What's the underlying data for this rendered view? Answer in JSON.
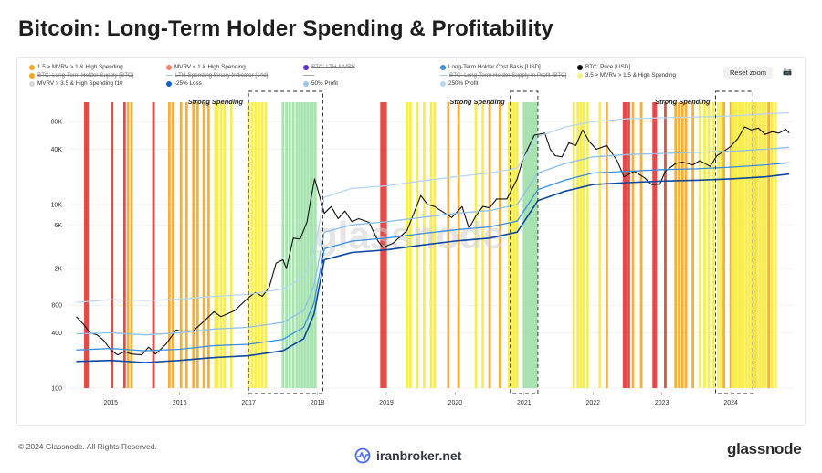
{
  "title": "Bitcoin: Long-Term Holder Spending & Profitability",
  "legend": [
    {
      "label": "1.5 > MVRV > 1 & High Spending",
      "color": "#f5a623",
      "style": "dot",
      "struck": false
    },
    {
      "label": "BTC: Long-Term Holder Supply [BTC]",
      "color": "#f5a623",
      "style": "dot",
      "struck": true
    },
    {
      "label": "MVRV > 3.5 & High Spending f10",
      "color": "#d9d9d9",
      "style": "dot",
      "struck": false
    },
    {
      "label": "MVRV < 1 & High Spending",
      "color": "#ff7f6e",
      "style": "dot",
      "struck": false
    },
    {
      "label": "LTH-Spending Binary Indicator [14d]",
      "color": "#9bc7e8",
      "style": "line",
      "struck": true
    },
    {
      "label": "-25% Loss",
      "color": "#1565c0",
      "style": "dot",
      "struck": false
    },
    {
      "label": "BTC: LTH-MVRV",
      "color": "#5b2bd6",
      "style": "dot",
      "struck": true
    },
    {
      "label": "——",
      "color": "#9aa0a6",
      "style": "none",
      "struck": false
    },
    {
      "label": "50% Profit",
      "color": "#9bc7e8",
      "style": "dot",
      "struck": false
    },
    {
      "label": "Long-Term Holder Cost Basis [USD]",
      "color": "#3b8fe0",
      "style": "dot",
      "struck": false
    },
    {
      "label": "BTC: Long-Term Holder Supply in Profit [BTC]",
      "color": "#9bc7e8",
      "style": "line",
      "struck": true
    },
    {
      "label": "250% Profit",
      "color": "#b7d6f2",
      "style": "dot",
      "struck": false
    },
    {
      "label": "BTC: Price [USD]",
      "color": "#111111",
      "style": "dot",
      "struck": false
    },
    {
      "label": "3.5 > MVRV > 1.5 & High Spending",
      "color": "#f7f28b",
      "style": "dot",
      "struck": false
    }
  ],
  "reset_zoom": "Reset zoom",
  "camera_icon": "camera-icon",
  "annotations": [
    "Strong Spending",
    "Strong Spending",
    "Strong Spending"
  ],
  "watermark": "glassnode",
  "footer": {
    "copyright": "© 2024 Glassnode. All Rights Reserved.",
    "center_brand": "iranbroker.net",
    "logo": "glassnode"
  },
  "chart_data": {
    "type": "line",
    "yscale": "log",
    "yticks": [
      100,
      400,
      800,
      2000,
      6000,
      10000,
      40000,
      80000
    ],
    "ytick_labels": [
      "100",
      "400",
      "800",
      "2K",
      "6K",
      "10K",
      "40K",
      "80K"
    ],
    "xtick_labels": [
      "2015",
      "2016",
      "2017",
      "2018",
      "2019",
      "2020",
      "2021",
      "2022",
      "2023",
      "2024"
    ],
    "xlim": [
      2014.4,
      2024.9
    ],
    "ylim": [
      100,
      130000
    ],
    "series": [
      {
        "name": "BTC: Price [USD]",
        "color": "#111111",
        "points": [
          [
            2014.5,
            600
          ],
          [
            2014.6,
            500
          ],
          [
            2014.7,
            400
          ],
          [
            2014.8,
            380
          ],
          [
            2014.9,
            330
          ],
          [
            2015.0,
            260
          ],
          [
            2015.1,
            230
          ],
          [
            2015.2,
            250
          ],
          [
            2015.3,
            235
          ],
          [
            2015.45,
            230
          ],
          [
            2015.55,
            280
          ],
          [
            2015.65,
            235
          ],
          [
            2015.8,
            300
          ],
          [
            2015.95,
            430
          ],
          [
            2016.0,
            420
          ],
          [
            2016.2,
            420
          ],
          [
            2016.4,
            580
          ],
          [
            2016.5,
            680
          ],
          [
            2016.6,
            600
          ],
          [
            2016.8,
            700
          ],
          [
            2017.0,
            970
          ],
          [
            2017.1,
            1100
          ],
          [
            2017.2,
            1000
          ],
          [
            2017.3,
            1250
          ],
          [
            2017.4,
            2300
          ],
          [
            2017.5,
            2500
          ],
          [
            2017.55,
            2000
          ],
          [
            2017.65,
            4300
          ],
          [
            2017.75,
            4200
          ],
          [
            2017.85,
            6500
          ],
          [
            2017.9,
            11000
          ],
          [
            2017.96,
            19000
          ],
          [
            2018.05,
            11000
          ],
          [
            2018.1,
            8000
          ],
          [
            2018.2,
            9500
          ],
          [
            2018.3,
            7000
          ],
          [
            2018.4,
            8500
          ],
          [
            2018.5,
            6500
          ],
          [
            2018.6,
            7000
          ],
          [
            2018.75,
            6400
          ],
          [
            2018.88,
            4000
          ],
          [
            2018.95,
            3400
          ],
          [
            2019.1,
            3800
          ],
          [
            2019.3,
            5200
          ],
          [
            2019.4,
            8000
          ],
          [
            2019.5,
            12500
          ],
          [
            2019.6,
            10000
          ],
          [
            2019.7,
            9500
          ],
          [
            2019.8,
            8500
          ],
          [
            2019.95,
            7200
          ],
          [
            2020.1,
            9500
          ],
          [
            2020.2,
            5500
          ],
          [
            2020.3,
            7500
          ],
          [
            2020.4,
            9500
          ],
          [
            2020.5,
            9200
          ],
          [
            2020.6,
            11500
          ],
          [
            2020.75,
            11500
          ],
          [
            2020.83,
            15000
          ],
          [
            2020.9,
            19000
          ],
          [
            2020.97,
            29000
          ],
          [
            2021.05,
            40000
          ],
          [
            2021.15,
            57000
          ],
          [
            2021.3,
            60000
          ],
          [
            2021.38,
            40000
          ],
          [
            2021.45,
            34000
          ],
          [
            2021.55,
            33000
          ],
          [
            2021.65,
            47000
          ],
          [
            2021.75,
            44000
          ],
          [
            2021.85,
            65000
          ],
          [
            2021.95,
            48000
          ],
          [
            2022.05,
            40000
          ],
          [
            2022.2,
            44000
          ],
          [
            2022.35,
            30000
          ],
          [
            2022.45,
            20000
          ],
          [
            2022.6,
            23000
          ],
          [
            2022.75,
            19500
          ],
          [
            2022.85,
            16500
          ],
          [
            2022.97,
            16600
          ],
          [
            2023.05,
            23000
          ],
          [
            2023.2,
            28000
          ],
          [
            2023.3,
            29000
          ],
          [
            2023.45,
            27000
          ],
          [
            2023.55,
            30000
          ],
          [
            2023.7,
            26000
          ],
          [
            2023.8,
            34000
          ],
          [
            2023.9,
            38000
          ],
          [
            2024.0,
            43000
          ],
          [
            2024.1,
            52000
          ],
          [
            2024.2,
            70000
          ],
          [
            2024.3,
            65000
          ],
          [
            2024.4,
            68000
          ],
          [
            2024.5,
            58000
          ],
          [
            2024.6,
            62000
          ],
          [
            2024.7,
            60000
          ],
          [
            2024.8,
            66000
          ],
          [
            2024.85,
            60000
          ]
        ]
      },
      {
        "name": "250% Profit",
        "color": "#b7d6f2",
        "points": [
          [
            2014.5,
            860
          ],
          [
            2015.0,
            920
          ],
          [
            2015.5,
            900
          ],
          [
            2016.0,
            930
          ],
          [
            2016.5,
            1000
          ],
          [
            2017.0,
            1050
          ],
          [
            2017.5,
            1200
          ],
          [
            2017.8,
            1600
          ],
          [
            2017.95,
            3000
          ],
          [
            2018.1,
            12000
          ],
          [
            2018.5,
            15000
          ],
          [
            2019.0,
            16000
          ],
          [
            2019.5,
            18000
          ],
          [
            2020.0,
            20000
          ],
          [
            2020.5,
            22000
          ],
          [
            2020.9,
            25000
          ],
          [
            2021.2,
            55000
          ],
          [
            2021.6,
            70000
          ],
          [
            2022.0,
            80000
          ],
          [
            2022.5,
            86000
          ],
          [
            2023.0,
            88000
          ],
          [
            2023.5,
            90000
          ],
          [
            2024.0,
            92000
          ],
          [
            2024.5,
            97000
          ],
          [
            2024.85,
            100000
          ]
        ]
      },
      {
        "name": "50% Profit",
        "color": "#8ec0ea",
        "points": [
          [
            2014.5,
            390
          ],
          [
            2015.0,
            400
          ],
          [
            2015.5,
            380
          ],
          [
            2016.0,
            400
          ],
          [
            2016.5,
            440
          ],
          [
            2017.0,
            460
          ],
          [
            2017.5,
            520
          ],
          [
            2017.8,
            700
          ],
          [
            2017.95,
            1300
          ],
          [
            2018.1,
            5000
          ],
          [
            2018.5,
            6000
          ],
          [
            2019.0,
            6500
          ],
          [
            2019.5,
            7200
          ],
          [
            2020.0,
            8000
          ],
          [
            2020.5,
            8600
          ],
          [
            2020.9,
            10000
          ],
          [
            2021.2,
            22000
          ],
          [
            2021.6,
            28000
          ],
          [
            2022.0,
            33000
          ],
          [
            2022.5,
            35000
          ],
          [
            2023.0,
            36000
          ],
          [
            2023.5,
            37000
          ],
          [
            2024.0,
            38000
          ],
          [
            2024.5,
            40000
          ],
          [
            2024.85,
            42000
          ]
        ]
      },
      {
        "name": "Long-Term Holder Cost Basis [USD]",
        "color": "#3b8fe0",
        "points": [
          [
            2014.5,
            260
          ],
          [
            2015.0,
            270
          ],
          [
            2015.5,
            255
          ],
          [
            2016.0,
            265
          ],
          [
            2016.5,
            290
          ],
          [
            2017.0,
            300
          ],
          [
            2017.5,
            340
          ],
          [
            2017.8,
            460
          ],
          [
            2017.95,
            850
          ],
          [
            2018.1,
            3300
          ],
          [
            2018.5,
            4000
          ],
          [
            2019.0,
            4300
          ],
          [
            2019.5,
            4800
          ],
          [
            2020.0,
            5300
          ],
          [
            2020.5,
            5700
          ],
          [
            2020.9,
            6600
          ],
          [
            2021.2,
            14500
          ],
          [
            2021.6,
            18500
          ],
          [
            2022.0,
            22000
          ],
          [
            2022.5,
            23000
          ],
          [
            2023.0,
            24000
          ],
          [
            2023.5,
            24500
          ],
          [
            2024.0,
            25500
          ],
          [
            2024.5,
            27000
          ],
          [
            2024.85,
            28500
          ]
        ]
      },
      {
        "name": "-25% Loss",
        "color": "#0d47a1",
        "points": [
          [
            2014.5,
            195
          ],
          [
            2015.0,
            200
          ],
          [
            2015.5,
            190
          ],
          [
            2016.0,
            200
          ],
          [
            2016.5,
            215
          ],
          [
            2017.0,
            225
          ],
          [
            2017.5,
            255
          ],
          [
            2017.8,
            345
          ],
          [
            2017.95,
            640
          ],
          [
            2018.1,
            2500
          ],
          [
            2018.5,
            3000
          ],
          [
            2019.0,
            3200
          ],
          [
            2019.5,
            3600
          ],
          [
            2020.0,
            4000
          ],
          [
            2020.5,
            4300
          ],
          [
            2020.9,
            5000
          ],
          [
            2021.2,
            11000
          ],
          [
            2021.6,
            14000
          ],
          [
            2022.0,
            16500
          ],
          [
            2022.5,
            17300
          ],
          [
            2023.0,
            18000
          ],
          [
            2023.5,
            18400
          ],
          [
            2024.0,
            19000
          ],
          [
            2024.5,
            20000
          ],
          [
            2024.85,
            21500
          ]
        ]
      }
    ],
    "spending_bands": [
      {
        "name": "MVRV < 1 & High Spending",
        "color": "#e53935",
        "x": [
          2014.63,
          2014.66,
          2015.02,
          2015.2,
          2015.62,
          2018.93,
          2018.96,
          2018.99,
          2022.45,
          2022.48,
          2022.52,
          2022.88,
          2022.91,
          2023.05
        ]
      },
      {
        "name": "1.5 > MVRV > 1 & High Spending",
        "color": "#f5a623",
        "x": [
          2015.25,
          2015.3,
          2015.85,
          2015.9,
          2016.02,
          2016.1,
          2016.2,
          2016.26,
          2016.35,
          2016.42,
          2019.9,
          2020.05,
          2020.5,
          2020.65,
          2022.2,
          2022.58,
          2022.7,
          2023.2,
          2023.25,
          2023.3,
          2023.35,
          2023.45,
          2023.9,
          2024.0,
          2024.35,
          2024.55
        ]
      },
      {
        "name": "3.5 > MVRV > 1.5 & High Spending",
        "color": "#f7ec3f",
        "x": [
          2016.52,
          2016.55,
          2016.6,
          2016.65,
          2016.75,
          2017.0,
          2017.05,
          2017.1,
          2017.15,
          2017.2,
          2017.25,
          2019.3,
          2019.35,
          2019.45,
          2019.55,
          2019.65,
          2019.7,
          2020.3,
          2020.4,
          2020.78,
          2020.82,
          2020.86,
          2020.9,
          2021.72,
          2021.78,
          2021.82,
          2021.86,
          2021.92,
          2022.1,
          2023.55,
          2023.62,
          2023.68,
          2023.75,
          2023.82,
          2023.86,
          2024.02,
          2024.05,
          2024.08,
          2024.12,
          2024.15,
          2024.18,
          2024.22,
          2024.26,
          2024.3,
          2024.34,
          2024.38,
          2024.42,
          2024.46,
          2024.5,
          2024.6,
          2024.65
        ]
      },
      {
        "name": "MVRV > 3.5 & High Spending f10",
        "color": "#9fe0a8",
        "x": [
          2017.5,
          2017.55,
          2017.6,
          2017.65,
          2017.7,
          2017.74,
          2017.78,
          2017.82,
          2017.86,
          2017.9,
          2017.93,
          2017.97,
          2021.0,
          2021.03,
          2021.06,
          2021.09,
          2021.12,
          2021.15,
          2021.18
        ]
      }
    ],
    "strong_spending_boxes": [
      [
        2017.0,
        2018.08
      ],
      [
        2020.8,
        2021.2
      ],
      [
        2023.78,
        2024.32
      ]
    ]
  }
}
